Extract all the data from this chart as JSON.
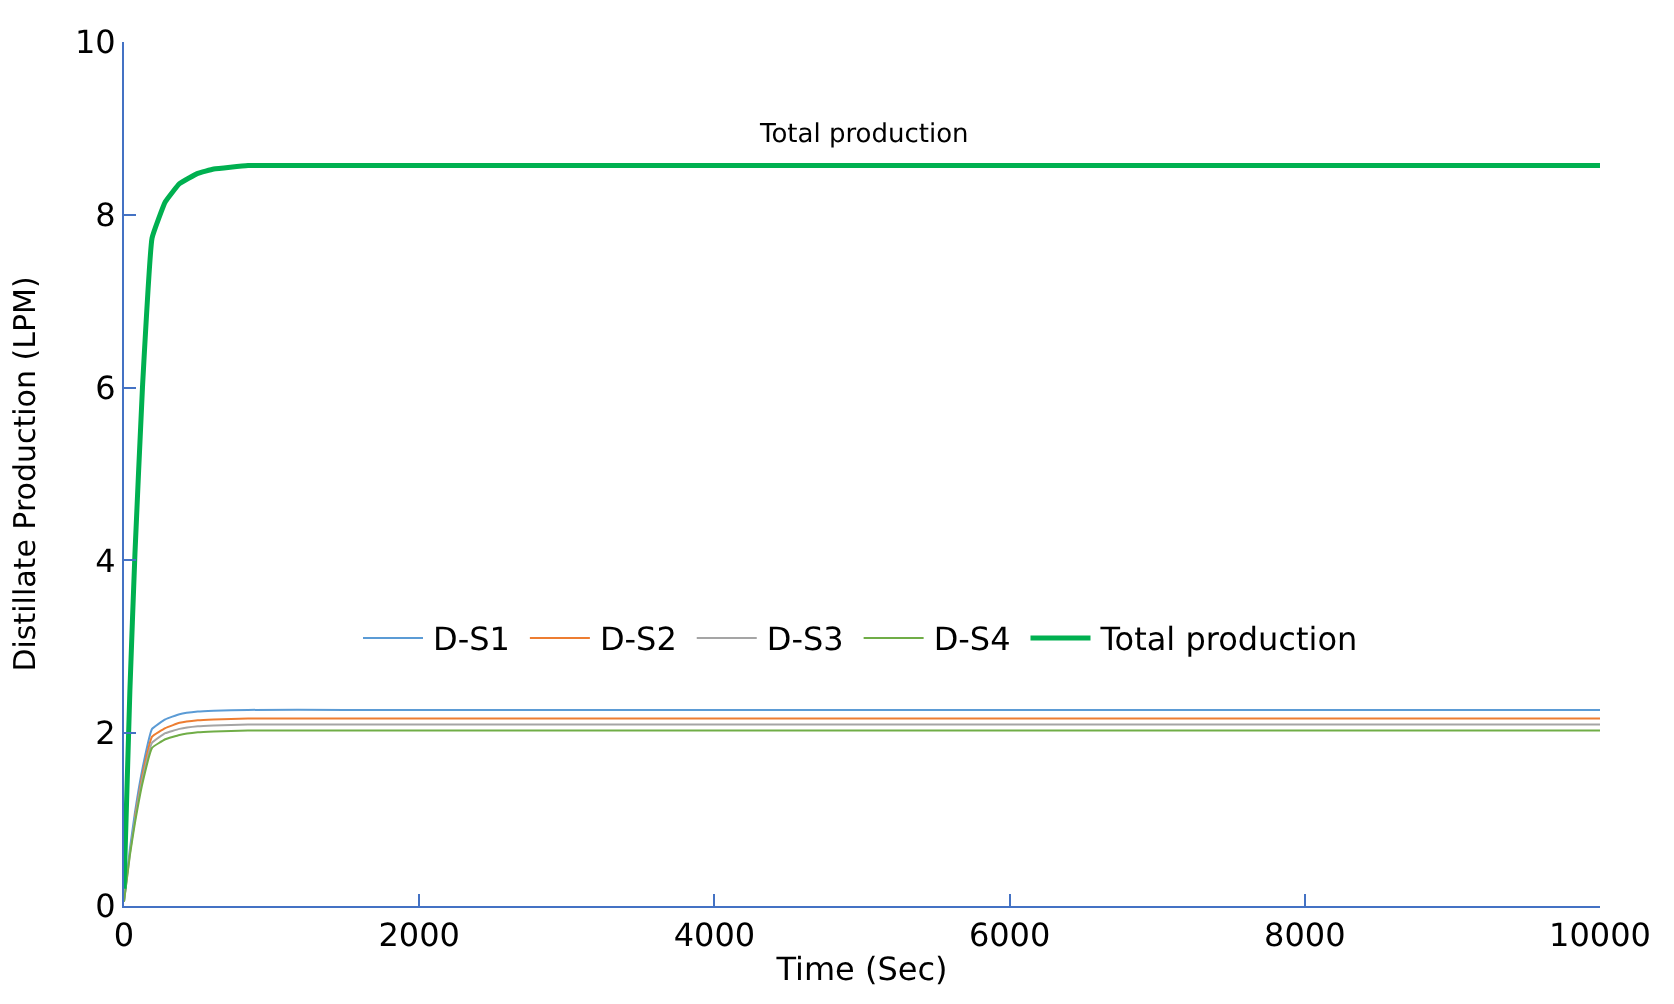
{
  "chart_data": {
    "type": "line",
    "xlabel": "Time (Sec)",
    "ylabel": "Distillate Production (LPM)",
    "x": [
      0,
      40,
      74,
      125,
      190,
      280,
      376,
      500,
      608,
      840,
      1500,
      10000
    ],
    "series": [
      {
        "name": "D-S1",
        "color": "#5b9bd5",
        "values": [
          0.05,
          0.66,
          1.08,
          1.59,
          2.05,
          2.16,
          2.22,
          2.25,
          2.26,
          2.27,
          2.27,
          2.27
        ]
      },
      {
        "name": "D-S2",
        "color": "#ed7d31",
        "values": [
          null,
          null,
          1.03,
          1.52,
          1.96,
          2.06,
          2.12,
          2.15,
          2.16,
          2.17,
          2.17,
          2.17
        ]
      },
      {
        "name": "D-S3",
        "color": "#a5a5a5",
        "values": [
          0.05,
          0.61,
          1.0,
          1.47,
          1.89,
          2.0,
          2.05,
          2.08,
          2.09,
          2.1,
          2.1,
          2.1
        ]
      },
      {
        "name": "D-S4",
        "color": "#70ad47",
        "values": [
          0.05,
          0.59,
          0.96,
          1.42,
          1.83,
          1.93,
          1.98,
          2.01,
          2.02,
          2.03,
          2.03,
          2.03
        ]
      },
      {
        "name": "Total production",
        "color": "#00b050",
        "values": [
          0.2,
          2.5,
          4.07,
          6.0,
          7.73,
          8.15,
          8.36,
          8.48,
          8.53,
          8.57,
          8.57,
          8.57
        ]
      }
    ],
    "annotations": [
      "Total production"
    ],
    "xlim": [
      0,
      10000
    ],
    "xticks": [
      0,
      2000,
      4000,
      6000,
      8000,
      10000
    ],
    "ylim": [
      0,
      10
    ],
    "yticks": [
      0,
      2,
      4,
      6,
      8,
      10
    ],
    "grid": false,
    "legend": "center",
    "marker": "none",
    "line_style": "solid"
  }
}
